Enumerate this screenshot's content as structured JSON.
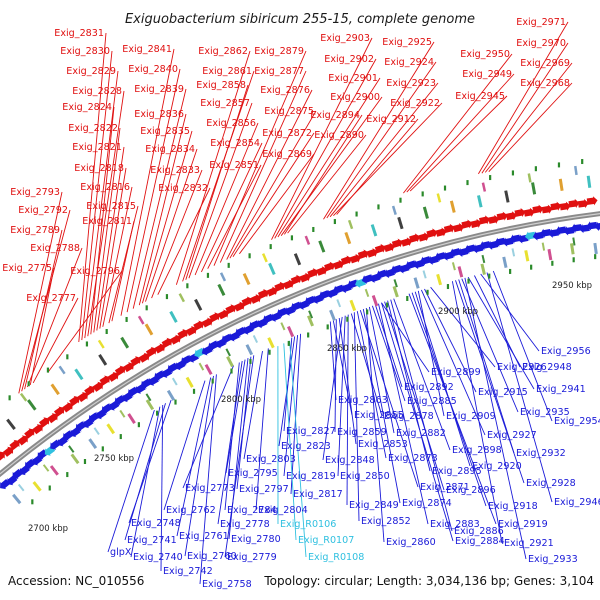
{
  "title": "Exiguobacterium sibiricum 255-15, complete genome",
  "accession": "Accession: NC_010556",
  "summary": "Topology: circular; Length: 3,034,136 bp; Genes: 3,104",
  "colors": {
    "forward_strand": "#e01010",
    "reverse_strand": "#1a1ad8",
    "rna": "#30c0e0",
    "backbone": "#8a8a8a",
    "tick": "#2a8a2a"
  },
  "scale_labels": [
    "2700 kbp",
    "2750 kbp",
    "2800 kbp",
    "2850 kbp",
    "2900 kbp",
    "2950 kbp"
  ],
  "forward_labels": [
    "Exig_2831",
    "Exig_2830",
    "Exig_2829",
    "Exig_2828",
    "Exig_2824",
    "Exig_2822",
    "Exig_2821",
    "Exig_2818",
    "Exig_2816",
    "Exig_2815",
    "Exig_2811",
    "Exig_2841",
    "Exig_2840",
    "Exig_2839",
    "Exig_2836",
    "Exig_2835",
    "Exig_2834",
    "Exig_2833",
    "Exig_2832",
    "Exig_2862",
    "Exig_2861",
    "Exig_2858",
    "Exig_2857",
    "Exig_2856",
    "Exig_2854",
    "Exig_2851",
    "Exig_2879",
    "Exig_2877",
    "Exig_2876",
    "Exig_2875",
    "Exig_2872",
    "Exig_2869",
    "Exig_2903",
    "Exig_2902",
    "Exig_2901",
    "Exig_2900",
    "Exig_2894",
    "Exig_2890",
    "Exig_2925",
    "Exig_2924",
    "Exig_2923",
    "Exig_2922",
    "Exig_2912",
    "Exig_2950",
    "Exig_2949",
    "Exig_2945",
    "Exig_2971",
    "Exig_2970",
    "Exig_2969",
    "Exig_2968",
    "Exig_2793",
    "Exig_2792",
    "Exig_2789",
    "Exig_2788",
    "Exig_2775",
    "Exig_2796",
    "Exig_2777"
  ],
  "reverse_labels": [
    "Exig_2956",
    "Exig_2948",
    "Exig_2941",
    "Exig_2954",
    "Exig_2935",
    "Exig_2932",
    "Exig_2928",
    "Exig_2946",
    "Exig_2921",
    "Exig_2933",
    "Exig_2926",
    "Exig_2915",
    "Exig_2909",
    "Exig_2927",
    "Exig_2920",
    "Exig_2918",
    "Exig_2919",
    "Exig_2899",
    "Exig_2892",
    "Exig_2885",
    "Exig_2882",
    "Exig_2898",
    "Exig_2895",
    "Exig_2896",
    "Exig_2886",
    "Exig_2884",
    "Exig_2883",
    "Exig_2863",
    "Exig_2855",
    "Exig_2859",
    "Exig_2853",
    "Exig_2848",
    "Exig_2850",
    "Exig_2878",
    "Exig_2873",
    "Exig_2871",
    "Exig_2874",
    "Exig_2849",
    "Exig_2852",
    "Exig_2860",
    "Exig_2827",
    "Exig_2823",
    "Exig_2803",
    "Exig_2819",
    "Exig_2817",
    "Exig_2804",
    "Exig_2795",
    "Exig_2797",
    "Exig_2773",
    "Exig_2784",
    "Exig_2778",
    "Exig_2780",
    "Exig_2779",
    "Exig_2762",
    "Exig_2761",
    "Exig_2760",
    "Exig_2758",
    "Exig_2748",
    "Exig_2741",
    "Exig_2740",
    "Exig_2742",
    "glpX"
  ],
  "rna_labels": [
    "Exig_R0106",
    "Exig_R0107",
    "Exig_R0108"
  ]
}
